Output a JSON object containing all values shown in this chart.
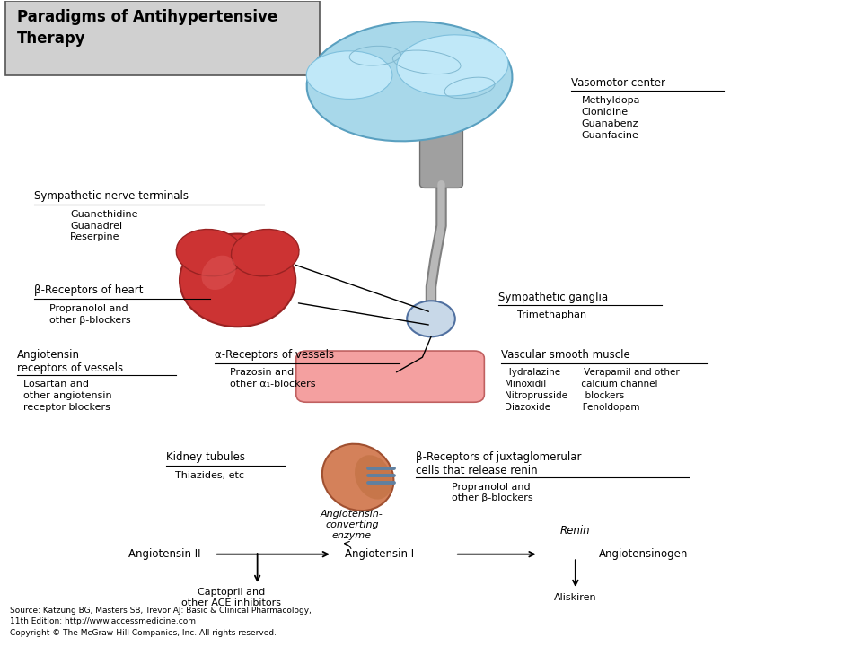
{
  "title": "Paradigms of Antihypertensive\nTherapy",
  "bg_color": "#ffffff",
  "title_box_color": "#d0d0d0",
  "source_text": "Source: Katzung BG, Masters SB, Trevor AJ: Basic & Clinical Pharmacology,\n11th Edition: http://www.accessmedicine.com\nCopyright © The McGraw-Hill Companies, Inc. All rights reserved.",
  "vasomotor_title": "Vasomotor center",
  "vasomotor_drugs": "Methyldopa\nClonidine\nGuanabenz\nGuanfacine",
  "sympathetic_nerve_title": "Sympathetic nerve terminals",
  "sympathetic_nerve_drugs": "Guanethidine\nGuanadrel\nReserpine",
  "beta_heart_title": "β-Receptors of heart",
  "beta_heart_drugs": "Propranolol and\nother β-blockers",
  "alpha_vessels_title": "α-Receptors of vessels",
  "alpha_vessels_drugs": "Prazosin and\nother α₁-blockers",
  "angiotensin_rec_title": "Angiotensin\nreceptors of vessels",
  "angiotensin_rec_drugs": "Losartan and\nother angiotensin\nreceptor blockers",
  "sympathetic_ganglia_title": "Sympathetic ganglia",
  "sympathetic_ganglia_drugs": "Trimethaphan",
  "vascular_smooth_title": "Vascular smooth muscle",
  "vascular_smooth_drugs": "Hydralazine        Verapamil and other\nMinoxidil            calcium channel\nNitroprusside      blockers\nDiazoxide           Fenoldopam",
  "kidney_tubules_title": "Kidney tubules",
  "kidney_tubules_drugs": "Thiazides, etc",
  "beta_juxta_title": "β-Receptors of juxtaglomerular\ncells that release renin",
  "beta_juxta_drugs": "Propranolol and\nother β-blockers",
  "ace_label": "Angiotensin-\nconverting\nenzyme",
  "angiotensin2_label": "Angiotensin II",
  "angiotensin1_label": "Angiotensin I",
  "angiotensinogen_label": "Angiotensinogen",
  "renin_label": "Renin",
  "captopril_label": "Captopril and\nother ACE inhibitors",
  "aliskiren_label": "Aliskiren"
}
